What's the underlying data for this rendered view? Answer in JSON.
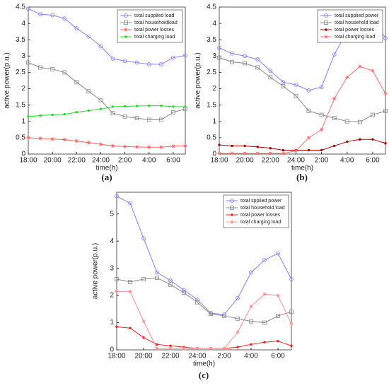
{
  "chart_data": [
    {
      "type": "line",
      "label": "(a)",
      "x_label": "time(h)",
      "y_label": "active power(p.u.)",
      "categories": [
        "18:00",
        null,
        "20:00",
        null,
        "22:00",
        null,
        "24:00",
        null,
        "2:00",
        null,
        "4:00",
        null,
        "6:00",
        null
      ],
      "ylim": [
        0,
        4.5
      ],
      "yticks": [
        0,
        0.5,
        1,
        1.5,
        2,
        2.5,
        3,
        3.5,
        4,
        4.5
      ],
      "legend": "upper right",
      "series": [
        {
          "name": "total supplied load",
          "color": "#8080ff",
          "marker": "circle",
          "values": [
            4.45,
            4.28,
            4.25,
            4.15,
            3.85,
            3.6,
            3.3,
            2.92,
            2.85,
            2.8,
            2.75,
            2.75,
            2.95,
            3.02
          ]
        },
        {
          "name": "total househoidload",
          "color": "#888888",
          "marker": "square",
          "values": [
            2.8,
            2.65,
            2.6,
            2.5,
            2.2,
            1.92,
            1.65,
            1.25,
            1.15,
            1.1,
            1.05,
            1.05,
            1.28,
            1.38
          ]
        },
        {
          "name": "total power losses",
          "color": "#ff6060",
          "marker": "star",
          "values": [
            0.5,
            0.48,
            0.46,
            0.44,
            0.4,
            0.35,
            0.3,
            0.25,
            0.23,
            0.22,
            0.21,
            0.21,
            0.24,
            0.25
          ]
        },
        {
          "name": "total charging load",
          "color": "#22dd22",
          "marker": "dot",
          "values": [
            1.15,
            1.18,
            1.2,
            1.22,
            1.28,
            1.33,
            1.38,
            1.45,
            1.46,
            1.47,
            1.48,
            1.48,
            1.45,
            1.45
          ]
        }
      ]
    },
    {
      "type": "line",
      "label": "(b)",
      "x_label": "time(h)",
      "y_label": "active power(p.u.)",
      "categories": [
        "18:00",
        null,
        "20:00",
        null,
        "22:00",
        null,
        "24:00",
        null,
        "2:00",
        null,
        "4:00",
        null,
        "6:00",
        null
      ],
      "ylim": [
        0,
        4.5
      ],
      "yticks": [
        0,
        0.5,
        1,
        1.5,
        2,
        2.5,
        3,
        3.5,
        4,
        4.5
      ],
      "legend": "upper right",
      "series": [
        {
          "name": "total supplied power",
          "color": "#8080ff",
          "marker": "circle",
          "values": [
            3.25,
            3.08,
            3.0,
            2.9,
            2.55,
            2.2,
            2.12,
            1.95,
            2.05,
            3.05,
            3.75,
            4.08,
            4.15,
            3.55
          ]
        },
        {
          "name": "total household load",
          "color": "#888888",
          "marker": "square",
          "values": [
            2.95,
            2.82,
            2.78,
            2.65,
            2.35,
            2.08,
            1.78,
            1.32,
            1.2,
            1.1,
            1.0,
            0.98,
            1.2,
            1.32
          ]
        },
        {
          "name": "total power losses",
          "color": "#aa0000",
          "marker": "dot",
          "values": [
            0.28,
            0.25,
            0.25,
            0.22,
            0.18,
            0.12,
            0.12,
            0.12,
            0.12,
            0.25,
            0.38,
            0.45,
            0.45,
            0.33
          ]
        },
        {
          "name": "total charging load",
          "color": "#ff7070",
          "marker": "star",
          "values": [
            0.02,
            0.02,
            0.02,
            0.02,
            0.02,
            0.02,
            0.1,
            0.5,
            0.75,
            1.7,
            2.35,
            2.68,
            2.55,
            1.85
          ]
        }
      ]
    },
    {
      "type": "line",
      "label": "(c)",
      "x_label": "time(h)",
      "y_label": "active power(p.u.)",
      "categories": [
        "18:00",
        null,
        "20:00",
        null,
        "22:00",
        null,
        "24:00",
        null,
        "2:00",
        null,
        "4:00",
        null,
        "6:00",
        null
      ],
      "ylim": [
        0,
        5.8
      ],
      "yticks": [
        0,
        1,
        2,
        3,
        4,
        5
      ],
      "legend": "upper right",
      "series": [
        {
          "name": "total spplied power",
          "color": "#8080ff",
          "marker": "circle",
          "values": [
            5.65,
            5.4,
            4.1,
            2.85,
            2.55,
            2.2,
            1.85,
            1.35,
            1.3,
            1.9,
            2.85,
            3.3,
            3.55,
            2.6
          ]
        },
        {
          "name": "total household load",
          "color": "#888888",
          "marker": "square",
          "values": [
            2.6,
            2.5,
            2.6,
            2.65,
            2.4,
            2.1,
            1.75,
            1.32,
            1.25,
            1.15,
            1.05,
            1.0,
            1.25,
            1.4
          ]
        },
        {
          "name": "total power losses",
          "color": "#ee2222",
          "marker": "dot",
          "values": [
            0.85,
            0.8,
            0.45,
            0.2,
            0.15,
            0.1,
            0.05,
            0.05,
            0.05,
            0.1,
            0.2,
            0.28,
            0.32,
            0.15
          ]
        },
        {
          "name": "total charging load",
          "color": "#ff9090",
          "marker": "star",
          "values": [
            2.15,
            2.15,
            1.05,
            0.05,
            0.05,
            0.05,
            0.05,
            0.05,
            0.05,
            0.65,
            1.6,
            2.05,
            2.0,
            0.95
          ]
        }
      ]
    }
  ]
}
